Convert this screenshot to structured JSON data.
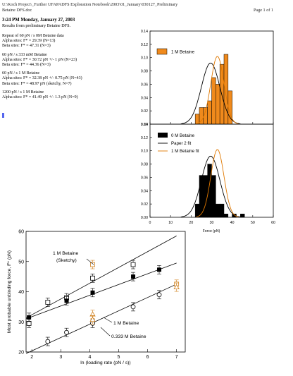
{
  "header": {
    "path": "U:\\Koch Project\\_Further UFAPADFS Exploration Notebook\\2003\\01_January\\030127_Preliminary",
    "path2": "Betaine DFS.doc",
    "page": "Page 1 of 1",
    "title": "3:24 PM Monday, January 27, 2003",
    "subtitle": "Results from preliminary Betaine DFS."
  },
  "notes": [
    {
      "lines": [
        "Repeat of 60 pN / s 0M Betaine data",
        "Alpha sites: F* = 29.39 (N=13)",
        "Beta sites: F* = 47.31 (N=3)"
      ]
    },
    {
      "lines": [
        "60 pN / s 333 mM Betaine",
        "Alpha sites: F* = 30.72 pN +/- 1 pN (N=23)",
        "Beta sites: F* = 44.36 (N=3)"
      ]
    },
    {
      "lines": [
        "60 pN / s 1 M Betaine",
        "Alpha sites: F* = 32.38 pN +/- 0.75 pN (N=43)",
        "Beta sites: F* = 48.97 pN (sketchy, N=7)"
      ]
    },
    {
      "lines": [
        "1200 pN / s 1 M Betaine",
        "Alpha sites: F* = 41.49 pN +/- 1.3 pN (N=9)"
      ]
    }
  ],
  "histograms": {
    "top": {
      "legend": [
        "1 M Betaine"
      ],
      "yticks": [
        "0.00",
        "0.02",
        "0.04",
        "0.06",
        "0.08",
        "0.10",
        "0.12",
        "0.14"
      ],
      "bins": [
        {
          "x0": 22,
          "h": 0.015
        },
        {
          "x0": 24,
          "h": 0.025
        },
        {
          "x0": 26,
          "h": 0.025
        },
        {
          "x0": 28,
          "h": 0.035
        },
        {
          "x0": 30,
          "h": 0.07
        },
        {
          "x0": 32,
          "h": 0.06
        },
        {
          "x0": 34,
          "h": 0.09
        },
        {
          "x0": 36,
          "h": 0.105
        },
        {
          "x0": 38,
          "h": 0.05
        }
      ],
      "bin_width": 2,
      "color": "#f08a1c"
    },
    "bottom": {
      "legend": [
        "0 M Betaine",
        "Paper 2 fit",
        "1 M Betaine fit"
      ],
      "yticks": [
        "0.00",
        "0.02",
        "0.04",
        "0.06",
        "0.08",
        "0.10",
        "0.12",
        "0.14"
      ],
      "bins": [
        {
          "x0": 22,
          "h": 0.02
        },
        {
          "x0": 24,
          "h": 0.063
        },
        {
          "x0": 26,
          "h": 0.063
        },
        {
          "x0": 28,
          "h": 0.08
        },
        {
          "x0": 30,
          "h": 0.063
        },
        {
          "x0": 32,
          "h": 0.02
        },
        {
          "x0": 34,
          "h": 0.02
        },
        {
          "x0": 36,
          "h": 0.005
        },
        {
          "x0": 40,
          "h": 0.005
        },
        {
          "x0": 44,
          "h": 0.005
        }
      ],
      "bin_width": 2,
      "color": "#000000"
    },
    "xticks": [
      "0",
      "10",
      "20",
      "30",
      "40",
      "50",
      "60"
    ],
    "xlabel": "Force (pN)"
  },
  "chart_data": {
    "type": "scatter",
    "xlabel": "ln (loading rate (pN / s))",
    "ylabel": "Most probable unbinding force, F* (pN)",
    "xlim": [
      1.8,
      7.3
    ],
    "ylim": [
      20,
      60
    ],
    "xticks": [
      "2",
      "3",
      "4",
      "5",
      "6",
      "7"
    ],
    "yticks": [
      "20",
      "30",
      "40",
      "50",
      "60"
    ],
    "annotations": [
      "1 M Betaine\n(Sketchy)",
      "1 M Betaine",
      "0.333 M Betaine"
    ],
    "series": [
      {
        "name": "open squares",
        "marker": "open-square",
        "color": "#000000",
        "x": [
          1.9,
          2.55,
          3.2,
          4.1,
          5.5
        ],
        "y": [
          29.5,
          36.5,
          38.0,
          44.5,
          49.0
        ]
      },
      {
        "name": "filled squares",
        "marker": "filled-square",
        "color": "#000000",
        "x": [
          1.9,
          3.2,
          4.1,
          5.5,
          6.4
        ],
        "y": [
          31.5,
          37.0,
          39.7,
          45.0,
          47.3
        ]
      },
      {
        "name": "open circles",
        "marker": "open-circle",
        "color": "#000000",
        "x": [
          2.55,
          3.2,
          4.1,
          5.5,
          6.4
        ],
        "y": [
          23.5,
          26.5,
          29.5,
          35.0,
          39.0
        ]
      },
      {
        "name": "orange squares",
        "marker": "open-square",
        "color": "#d07f1a",
        "x": [
          4.1,
          7.0
        ],
        "y": [
          49.0,
          42.5
        ]
      },
      {
        "name": "orange triangles",
        "marker": "open-triangle",
        "color": "#d07f1a",
        "x": [
          4.1,
          4.1,
          7.0
        ],
        "y": [
          32.5,
          30.7,
          41.5
        ]
      }
    ],
    "fit_lines": [
      {
        "x": [
          1.8,
          7.0
        ],
        "y": [
          31.3,
          58.5
        ]
      },
      {
        "x": [
          1.8,
          7.0
        ],
        "y": [
          31.0,
          49.5
        ]
      },
      {
        "x": [
          1.8,
          7.0
        ],
        "y": [
          19.5,
          42.5
        ]
      }
    ]
  }
}
